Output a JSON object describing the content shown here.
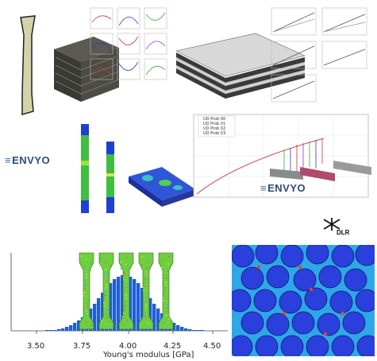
{
  "logos": {
    "envyo_left": "ENVYO",
    "envyo_right": "ENVYO",
    "dlr": "DLR"
  },
  "histogram": {
    "x_ticks": [
      "3.50",
      "3.75",
      "4.00",
      "4.25",
      "4.50"
    ],
    "xlabel": "Young's modulus [GPa]"
  },
  "stress_plot": {
    "legend": [
      "UD Prob 00",
      "UD Prob 01",
      "UD Prob 02",
      "UD Prob 03"
    ]
  },
  "colors": {
    "specimen_body": "#d4d2a8",
    "fem_green": "#3fbf3f",
    "fem_blue": "#1f3fd0",
    "fibre_blue": "#2a3fdc",
    "matrix_cyan": "#2fa6e8"
  }
}
